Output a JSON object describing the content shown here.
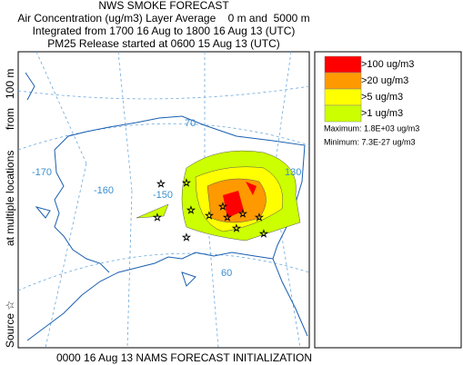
{
  "header": {
    "title": "NWS SMOKE FORECAST",
    "lines": [
      "Air Concentration (ug/m3) Layer Average    0 m and  5000 m",
      "Integrated from 1700 16 Aug to 1800 16 Aug 13 (UTC)",
      "PM25 Release started at 0600 15 Aug 13 (UTC)"
    ]
  },
  "side_label": [
    "Source ☆",
    "at multiple locations",
    "from   100 m"
  ],
  "map": {
    "labels": [
      "-170",
      "-160",
      "-150",
      "70",
      "130",
      "60"
    ]
  },
  "legend": {
    "items": [
      {
        "label": ">100 ug/m3",
        "color": "#ff0000"
      },
      {
        "label": ">20 ug/m3",
        "color": "#ff9900"
      },
      {
        "label": ">5 ug/m3",
        "color": "#ffff00"
      },
      {
        "label": ">1 ug/m3",
        "color": "#ccff00"
      }
    ],
    "maximum": "Maximum: 1.8E+03 ug/m3",
    "minimum": "Minimum: 7.3E-27 ug/m3"
  },
  "footer": "0000 16 Aug 13 NAMS FORECAST INITIALIZATION"
}
